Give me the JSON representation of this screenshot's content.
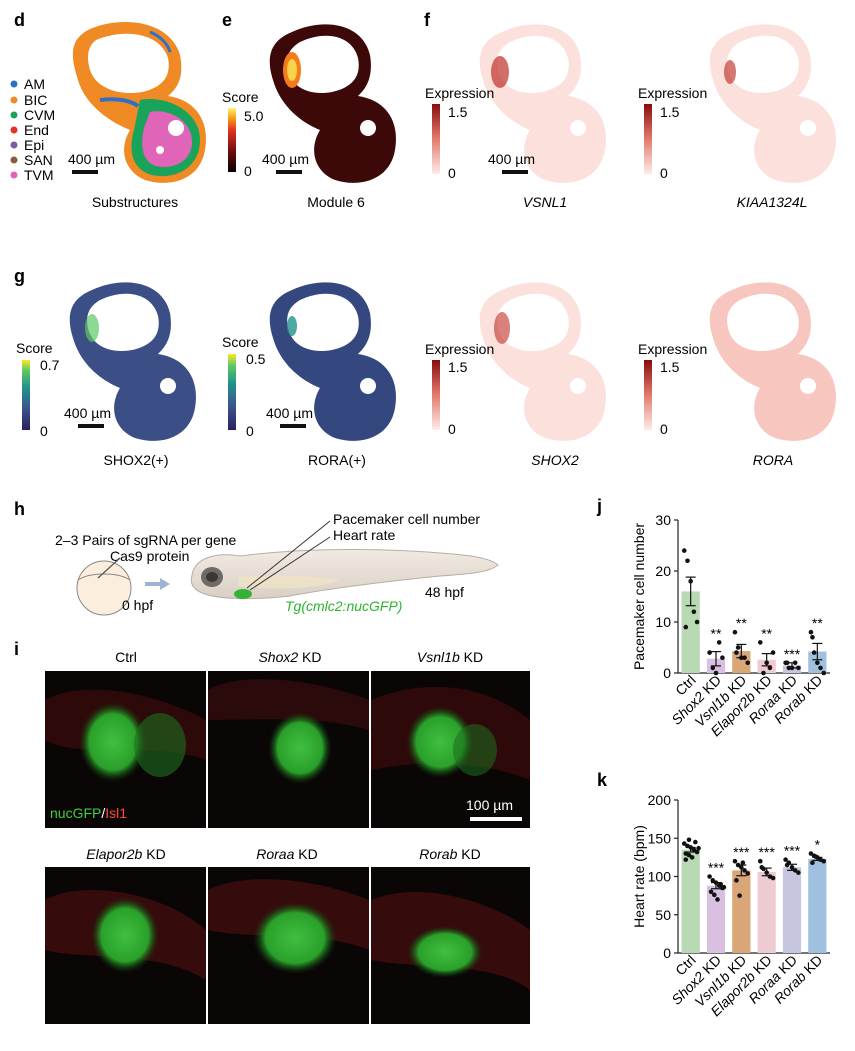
{
  "panel_letters": {
    "d": "d",
    "e": "e",
    "f": "f",
    "g": "g",
    "h": "h",
    "i": "i",
    "j": "j",
    "k": "k"
  },
  "panel_d": {
    "legend": [
      {
        "label": "AM",
        "color": "#2f6fc7"
      },
      {
        "label": "BIC",
        "color": "#f08a24"
      },
      {
        "label": "CVM",
        "color": "#1aa35a"
      },
      {
        "label": "End",
        "color": "#e0322b"
      },
      {
        "label": "Epi",
        "color": "#7d5aa6"
      },
      {
        "label": "SAN",
        "color": "#8a5a44"
      },
      {
        "label": "TVM",
        "color": "#e065b8"
      }
    ],
    "scalebar": "400 µm",
    "caption": "Substructures"
  },
  "panel_e": {
    "colorbar_title": "Score",
    "colorbar_max": "5.0",
    "colorbar_min": "0",
    "scalebar": "400 µm",
    "caption": "Module 6"
  },
  "panel_f": {
    "left": {
      "colorbar_title": "Expression",
      "colorbar_max": "1.5",
      "colorbar_min": "0",
      "scalebar": "400 µm",
      "caption": "VSNL1"
    },
    "right": {
      "colorbar_title": "Expression",
      "colorbar_max": "1.5",
      "colorbar_min": "0",
      "caption": "KIAA1324L"
    }
  },
  "panel_g": {
    "a": {
      "colorbar_title": "Score",
      "colorbar_max": "0.7",
      "colorbar_min": "0",
      "scalebar": "400 µm",
      "caption": "SHOX2(+)"
    },
    "b": {
      "colorbar_title": "Score",
      "colorbar_max": "0.5",
      "colorbar_min": "0",
      "scalebar": "400 µm",
      "caption": "RORA(+)"
    },
    "c": {
      "colorbar_title": "Expression",
      "colorbar_max": "1.5",
      "colorbar_min": "0",
      "caption": "SHOX2"
    },
    "d": {
      "colorbar_title": "Expression",
      "colorbar_max": "1.5",
      "colorbar_min": "0",
      "caption": "RORA"
    }
  },
  "panel_h": {
    "sgrna": "2–3 Pairs of sgRNA per gene",
    "cas9": "Cas9 protein",
    "t0": "0 hpf",
    "pacemaker": "Pacemaker cell number",
    "heart_rate": "Heart rate",
    "t48": "48 hpf",
    "line": "Tg(cmlc2:nucGFP)"
  },
  "panel_i": {
    "titles": [
      {
        "gene": "Ctrl",
        "suffix": ""
      },
      {
        "gene": "Shox2",
        "suffix": " KD"
      },
      {
        "gene": "Vsnl1b",
        "suffix": " KD"
      },
      {
        "gene": "Elapor2b",
        "suffix": " KD"
      },
      {
        "gene": "Roraa",
        "suffix": " KD"
      },
      {
        "gene": "Rorab",
        "suffix": " KD"
      }
    ],
    "stain_green": "nucGFP",
    "stain_sep": "/",
    "stain_red": "Isl1",
    "scalebar": "100 µm"
  },
  "chart_data": [
    {
      "panel": "j",
      "type": "bar",
      "ylabel": "Pacemaker cell number",
      "ylim": [
        0,
        30
      ],
      "yticks": [
        0,
        10,
        20,
        30
      ],
      "categories": [
        "Ctrl",
        "Shox2 KD",
        "Vsnl1b KD",
        "Elapor2b KD",
        "Roraa KD",
        "Rorab KD"
      ],
      "values": [
        16,
        2.8,
        4.3,
        2.6,
        1.5,
        4.2
      ],
      "errors": [
        2.8,
        1.4,
        1.3,
        1.2,
        0.5,
        1.6
      ],
      "significance": [
        "",
        "**",
        "**",
        "**",
        "***",
        "**"
      ],
      "colors": [
        "#b8d9b4",
        "#d9bfe0",
        "#d9a777",
        "#eecad3",
        "#c7c6e1",
        "#9fc0de"
      ],
      "points": [
        [
          24,
          22,
          18,
          12,
          10,
          9
        ],
        [
          4,
          1,
          0,
          6,
          3
        ],
        [
          8,
          5,
          3,
          3,
          2,
          4
        ],
        [
          6,
          0,
          2,
          1,
          4
        ],
        [
          2,
          1,
          1,
          2,
          1,
          2
        ],
        [
          8,
          4,
          2,
          1,
          0,
          7
        ]
      ]
    },
    {
      "panel": "k",
      "type": "bar",
      "ylabel": "Heart rate (bpm)",
      "ylim": [
        0,
        200
      ],
      "yticks": [
        0,
        50,
        100,
        150,
        200
      ],
      "categories": [
        "Ctrl",
        "Shox2 KD",
        "Vsnl1b KD",
        "Elapor2b KD",
        "Roraa KD",
        "Rorab KD"
      ],
      "values": [
        135,
        88,
        108,
        106,
        112,
        123
      ],
      "errors": [
        3,
        4,
        7,
        5,
        4,
        2
      ],
      "significance": [
        "",
        "***",
        "***",
        "***",
        "***",
        "*"
      ],
      "colors": [
        "#b8d9b4",
        "#d9bfe0",
        "#d9a777",
        "#eecad3",
        "#c7c6e1",
        "#9fc0de"
      ],
      "points": [
        [
          143,
          140,
          138,
          135,
          132,
          130,
          128,
          125,
          145,
          137,
          122,
          148
        ],
        [
          100,
          95,
          92,
          88,
          85,
          80,
          76,
          70,
          90,
          86
        ],
        [
          120,
          115,
          112,
          108,
          104,
          95,
          75,
          118
        ],
        [
          120,
          110,
          105,
          100,
          98,
          112
        ],
        [
          122,
          118,
          112,
          108,
          105,
          115
        ],
        [
          130,
          127,
          125,
          122,
          120,
          118,
          126
        ]
      ]
    }
  ]
}
